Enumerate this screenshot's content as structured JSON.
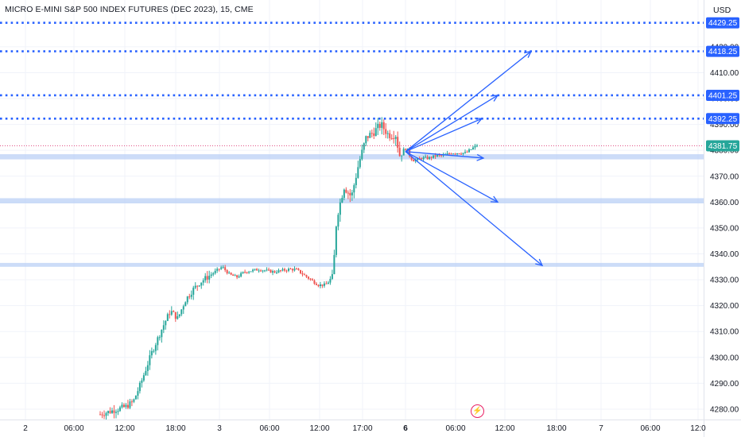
{
  "chart": {
    "title": "MICRO E-MINI S&P 500 INDEX FUTURES (DEC 2023), 15, CME",
    "currency": "USD"
  },
  "chart_data": {
    "type": "candlestick",
    "title": "MICRO E-MINI S&P 500 INDEX FUTURES (DEC 2023), 15, CME",
    "currency": "USD",
    "ylim": [
      4276,
      4435
    ],
    "y_ticks": [
      4280,
      4290,
      4300,
      4310,
      4320,
      4330,
      4340,
      4350,
      4360,
      4370,
      4380,
      4390,
      4400,
      4410,
      4420
    ],
    "x_ticks": [
      {
        "label": "2",
        "bold": false
      },
      {
        "label": "06:00",
        "bold": false
      },
      {
        "label": "12:00",
        "bold": false
      },
      {
        "label": "18:00",
        "bold": false
      },
      {
        "label": "3",
        "bold": false
      },
      {
        "label": "06:00",
        "bold": false
      },
      {
        "label": "12:00",
        "bold": false
      },
      {
        "label": "17:00",
        "bold": false
      },
      {
        "label": "6",
        "bold": true
      },
      {
        "label": "06:00",
        "bold": false
      },
      {
        "label": "12:00",
        "bold": false
      },
      {
        "label": "18:00",
        "bold": false
      },
      {
        "label": "7",
        "bold": false
      },
      {
        "label": "06:00",
        "bold": false
      },
      {
        "label": "12:0",
        "bold": false
      }
    ],
    "last_price": {
      "value": 4381.75,
      "label": "4381.75",
      "color": "#26a69a"
    },
    "resistance_levels": [
      {
        "value": 4429.25,
        "label": "4429.25"
      },
      {
        "value": 4418.25,
        "label": "4418.25"
      },
      {
        "value": 4401.25,
        "label": "4401.25"
      },
      {
        "value": 4392.25,
        "label": "4392.25"
      }
    ],
    "support_zones": [
      {
        "from": 4376.5,
        "to": 4378.5
      },
      {
        "from": 4359.5,
        "to": 4361.5
      },
      {
        "from": 4335.0,
        "to": 4336.5
      }
    ],
    "projection_arrows": {
      "origin_price": 4379.5,
      "targets": [
        4418.25,
        4401.25,
        4392.25,
        4377.0,
        4360.0,
        4335.5
      ]
    },
    "price_path": [
      [
        0,
        4278
      ],
      [
        7,
        4281
      ],
      [
        9,
        4283
      ],
      [
        11,
        4290
      ],
      [
        14,
        4302
      ],
      [
        17,
        4312
      ],
      [
        19,
        4318
      ],
      [
        21,
        4315
      ],
      [
        23,
        4322
      ],
      [
        25,
        4326
      ],
      [
        27,
        4329
      ],
      [
        29,
        4331
      ],
      [
        31,
        4333
      ],
      [
        33,
        4335
      ],
      [
        35,
        4332
      ],
      [
        37,
        4331
      ],
      [
        39,
        4333
      ],
      [
        43,
        4334
      ],
      [
        47,
        4333
      ],
      [
        51,
        4334
      ],
      [
        53,
        4334
      ],
      [
        55,
        4332
      ],
      [
        57,
        4330
      ],
      [
        59,
        4328
      ],
      [
        61,
        4328
      ],
      [
        63,
        4331
      ],
      [
        64,
        4354
      ],
      [
        66,
        4366
      ],
      [
        68,
        4362
      ],
      [
        70,
        4375
      ],
      [
        72,
        4385
      ],
      [
        74,
        4387
      ],
      [
        76,
        4390
      ],
      [
        78,
        4386
      ],
      [
        80,
        4386
      ],
      [
        81,
        4378
      ],
      [
        82,
        4380
      ],
      [
        83,
        4381
      ],
      [
        84,
        4377
      ],
      [
        85,
        4376
      ],
      [
        87,
        4377
      ],
      [
        89,
        4377
      ],
      [
        91,
        4378
      ],
      [
        93,
        4378
      ],
      [
        95,
        4379
      ],
      [
        97,
        4379
      ],
      [
        99,
        4379
      ],
      [
        101,
        4381
      ],
      [
        102,
        4382
      ]
    ],
    "colors": {
      "up": "#26a69a",
      "down": "#ef5350",
      "levels": "#2962ff",
      "zones": "#bbd0f6",
      "arrows": "#2962ff"
    }
  }
}
